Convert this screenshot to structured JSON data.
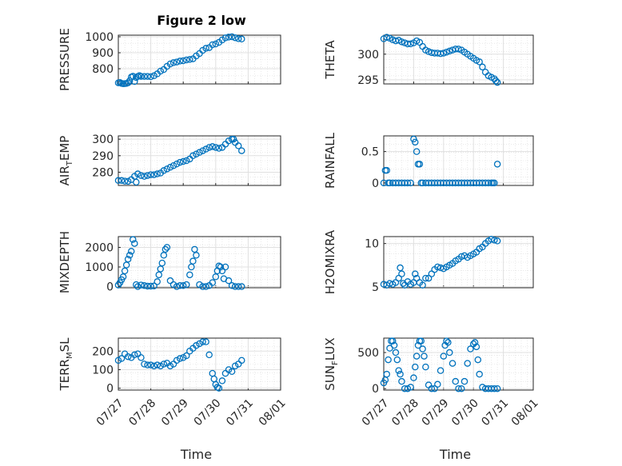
{
  "figure": {
    "title": "Figure 2 low"
  },
  "chart_data": [
    {
      "type": "scatter",
      "ylabel": "PRESSURE",
      "ylim": [
        705,
        1010
      ],
      "yticks": [
        800,
        900,
        1000
      ],
      "xlim": [
        0,
        5
      ],
      "grid": true,
      "marker_color": "#0072bd",
      "x": [
        0,
        0.05,
        0.1,
        0.15,
        0.2,
        0.25,
        0.3,
        0.35,
        0.4,
        0.45,
        0.5,
        0.55,
        0.6,
        0.65,
        0.7,
        0.8,
        0.9,
        1.0,
        1.1,
        1.2,
        1.3,
        1.4,
        1.5,
        1.6,
        1.7,
        1.8,
        1.9,
        2.0,
        2.1,
        2.2,
        2.3,
        2.4,
        2.5,
        2.6,
        2.7,
        2.8,
        2.9,
        3.0,
        3.1,
        3.2,
        3.3,
        3.4,
        3.5,
        3.6,
        3.7,
        3.8
      ],
      "y": [
        712,
        714,
        708,
        706,
        707,
        708,
        712,
        725,
        748,
        753,
        720,
        745,
        752,
        757,
        752,
        752,
        752,
        750,
        756,
        768,
        785,
        795,
        815,
        830,
        838,
        842,
        848,
        850,
        855,
        858,
        862,
        880,
        895,
        915,
        928,
        932,
        950,
        955,
        965,
        980,
        993,
        998,
        1000,
        994,
        988,
        986
      ]
    },
    {
      "type": "scatter",
      "ylabel": "THETA",
      "ylim": [
        294.2,
        303.7
      ],
      "yticks": [
        295,
        300
      ],
      "xlim": [
        0,
        5
      ],
      "grid": true,
      "x": [
        0,
        0.1,
        0.2,
        0.3,
        0.4,
        0.5,
        0.6,
        0.7,
        0.8,
        0.9,
        1.0,
        1.1,
        1.2,
        1.3,
        1.4,
        1.5,
        1.6,
        1.7,
        1.8,
        1.9,
        2.0,
        2.1,
        2.2,
        2.3,
        2.4,
        2.5,
        2.6,
        2.7,
        2.8,
        2.9,
        3.0,
        3.1,
        3.2,
        3.3,
        3.4,
        3.5,
        3.6,
        3.7,
        3.75,
        3.8
      ],
      "y": [
        303,
        303.3,
        303.1,
        302.8,
        302.6,
        302.7,
        302.4,
        302.2,
        302.0,
        302.0,
        302.2,
        302.6,
        302.3,
        301.5,
        300.8,
        300.5,
        300.3,
        300.2,
        300.2,
        300.1,
        300.2,
        300.4,
        300.6,
        300.8,
        301.0,
        301.0,
        300.8,
        300.4,
        300.0,
        299.6,
        299.2,
        298.8,
        298.5,
        297.5,
        296.5,
        295.8,
        295.5,
        295.2,
        294.8,
        294.5
      ]
    },
    {
      "type": "scatter",
      "ylabel": "AIR_TEMP",
      "ylim": [
        272,
        302
      ],
      "yticks": [
        280,
        290,
        300
      ],
      "xlim": [
        0,
        5
      ],
      "grid": true,
      "x": [
        0,
        0.1,
        0.2,
        0.3,
        0.4,
        0.5,
        0.55,
        0.6,
        0.7,
        0.8,
        0.9,
        1.0,
        1.1,
        1.2,
        1.3,
        1.4,
        1.5,
        1.6,
        1.7,
        1.8,
        1.9,
        2.0,
        2.1,
        2.2,
        2.3,
        2.4,
        2.5,
        2.6,
        2.7,
        2.8,
        2.9,
        3.0,
        3.1,
        3.2,
        3.3,
        3.4,
        3.5,
        3.55,
        3.6,
        3.7,
        3.8
      ],
      "y": [
        275,
        275,
        274.6,
        274.5,
        275.5,
        277.5,
        274,
        279,
        278,
        277.5,
        278,
        278.5,
        278.5,
        279,
        279.5,
        281,
        282,
        283,
        284,
        285,
        286,
        286.5,
        287,
        288,
        290,
        291,
        292,
        293,
        294,
        295,
        295.5,
        295,
        294.5,
        295,
        297,
        299,
        300,
        300,
        298,
        296,
        293
      ]
    },
    {
      "type": "scatter",
      "ylabel": "RAINFALL",
      "ylim": [
        -0.04,
        0.75
      ],
      "yticks": [
        0,
        0.5
      ],
      "xlim": [
        0,
        5
      ],
      "grid": true,
      "x": [
        0,
        0.05,
        0.1,
        0.15,
        0.2,
        0.3,
        0.4,
        0.5,
        0.6,
        0.7,
        0.8,
        0.9,
        1.0,
        1.05,
        1.1,
        1.15,
        1.2,
        1.25,
        1.3,
        1.4,
        1.5,
        1.6,
        1.7,
        1.8,
        1.9,
        2.0,
        2.1,
        2.2,
        2.3,
        2.4,
        2.5,
        2.6,
        2.7,
        2.8,
        2.9,
        3.0,
        3.1,
        3.2,
        3.3,
        3.4,
        3.5,
        3.6,
        3.65,
        3.7,
        3.8
      ],
      "y": [
        0,
        0.2,
        0.2,
        0,
        0,
        0,
        0,
        0,
        0,
        0,
        0,
        0,
        0.7,
        0.65,
        0.5,
        0.3,
        0.3,
        0,
        0,
        0,
        0,
        0,
        0,
        0,
        0,
        0,
        0,
        0,
        0,
        0,
        0,
        0,
        0,
        0,
        0,
        0,
        0,
        0,
        0,
        0,
        0,
        0,
        0,
        0,
        0.3
      ]
    },
    {
      "type": "scatter",
      "ylabel": "MIXDEPTH",
      "ylim": [
        -60,
        2550
      ],
      "yticks": [
        0,
        1000,
        2000
      ],
      "xlim": [
        0,
        5
      ],
      "grid": true,
      "x": [
        0,
        0.05,
        0.1,
        0.15,
        0.2,
        0.25,
        0.3,
        0.35,
        0.4,
        0.45,
        0.5,
        0.55,
        0.6,
        0.7,
        0.8,
        0.9,
        1.0,
        1.1,
        1.2,
        1.25,
        1.3,
        1.35,
        1.4,
        1.45,
        1.5,
        1.6,
        1.7,
        1.8,
        1.9,
        2.0,
        2.1,
        2.2,
        2.25,
        2.3,
        2.35,
        2.4,
        2.5,
        2.6,
        2.7,
        2.8,
        2.9,
        3.0,
        3.05,
        3.1,
        3.15,
        3.2,
        3.25,
        3.3,
        3.4,
        3.5,
        3.6,
        3.7,
        3.8
      ],
      "y": [
        80,
        200,
        350,
        500,
        800,
        1100,
        1400,
        1600,
        1800,
        2400,
        2200,
        100,
        0,
        80,
        50,
        20,
        20,
        30,
        250,
        600,
        900,
        1200,
        1600,
        1900,
        2000,
        300,
        100,
        0,
        50,
        50,
        100,
        600,
        1000,
        1300,
        1900,
        1600,
        100,
        0,
        0,
        50,
        200,
        500,
        800,
        1050,
        1000,
        800,
        400,
        1000,
        300,
        50,
        0,
        0,
        0
      ]
    },
    {
      "type": "scatter",
      "ylabel": "H2OMIXRA",
      "ylim": [
        4.9,
        10.8
      ],
      "yticks": [
        5,
        10
      ],
      "xlim": [
        0,
        5
      ],
      "grid": true,
      "x": [
        0,
        0.1,
        0.2,
        0.3,
        0.4,
        0.5,
        0.55,
        0.6,
        0.65,
        0.7,
        0.8,
        0.9,
        1.0,
        1.05,
        1.1,
        1.2,
        1.3,
        1.4,
        1.5,
        1.6,
        1.7,
        1.8,
        1.9,
        2.0,
        2.1,
        2.2,
        2.3,
        2.4,
        2.5,
        2.6,
        2.7,
        2.8,
        2.9,
        3.0,
        3.1,
        3.2,
        3.3,
        3.4,
        3.5,
        3.6,
        3.7,
        3.8
      ],
      "y": [
        5.3,
        5.2,
        5.4,
        5.3,
        5.5,
        6.0,
        7.2,
        6.5,
        5.4,
        5.2,
        5.6,
        5.3,
        5.5,
        6.5,
        6.0,
        5.5,
        5.2,
        6.0,
        6.0,
        6.5,
        7.0,
        7.3,
        7.2,
        7.1,
        7.3,
        7.5,
        7.7,
        8.0,
        8.2,
        8.5,
        8.6,
        8.4,
        8.6,
        8.8,
        9.0,
        9.4,
        9.6,
        10.0,
        10.3,
        10.5,
        10.4,
        10.3
      ]
    },
    {
      "type": "scatter",
      "ylabel": "TERR_MSL",
      "ylim": [
        -10,
        270
      ],
      "yticks": [
        0,
        100,
        200
      ],
      "xlim": [
        0,
        5
      ],
      "grid": true,
      "x": [
        0,
        0.1,
        0.2,
        0.3,
        0.4,
        0.5,
        0.6,
        0.7,
        0.8,
        0.9,
        1.0,
        1.1,
        1.2,
        1.3,
        1.4,
        1.5,
        1.6,
        1.7,
        1.8,
        1.9,
        2.0,
        2.1,
        2.2,
        2.3,
        2.4,
        2.5,
        2.6,
        2.7,
        2.8,
        2.9,
        2.95,
        3.0,
        3.05,
        3.1,
        3.2,
        3.3,
        3.4,
        3.5,
        3.6,
        3.7,
        3.8
      ],
      "y": [
        150,
        160,
        185,
        170,
        165,
        180,
        185,
        165,
        130,
        125,
        125,
        120,
        125,
        120,
        130,
        135,
        120,
        130,
        150,
        160,
        165,
        175,
        200,
        215,
        230,
        240,
        250,
        250,
        180,
        80,
        50,
        20,
        5,
        0,
        40,
        80,
        100,
        90,
        120,
        130,
        150
      ]
    },
    {
      "type": "scatter",
      "ylabel": "SUN_FLUX",
      "ylim": [
        -20,
        700
      ],
      "yticks": [
        0,
        500
      ],
      "xlim": [
        0,
        5
      ],
      "grid": true,
      "x": [
        0,
        0.05,
        0.1,
        0.15,
        0.2,
        0.25,
        0.3,
        0.35,
        0.4,
        0.45,
        0.5,
        0.55,
        0.6,
        0.7,
        0.8,
        0.9,
        1.0,
        1.05,
        1.1,
        1.15,
        1.2,
        1.25,
        1.3,
        1.35,
        1.4,
        1.5,
        1.6,
        1.7,
        1.8,
        1.9,
        2.0,
        2.05,
        2.1,
        2.15,
        2.2,
        2.3,
        2.4,
        2.5,
        2.6,
        2.7,
        2.8,
        2.9,
        3.0,
        3.05,
        3.1,
        3.15,
        3.2,
        3.3,
        3.4,
        3.5,
        3.6,
        3.7,
        3.8
      ],
      "y": [
        80,
        120,
        200,
        400,
        560,
        660,
        660,
        600,
        500,
        400,
        250,
        200,
        100,
        0,
        0,
        20,
        150,
        300,
        450,
        600,
        660,
        660,
        550,
        450,
        300,
        50,
        0,
        0,
        60,
        250,
        450,
        600,
        660,
        640,
        500,
        350,
        100,
        0,
        0,
        100,
        350,
        550,
        620,
        640,
        580,
        400,
        200,
        20,
        0,
        0,
        0,
        0,
        0
      ]
    }
  ],
  "xaxis": {
    "tick_labels": [
      "07/27",
      "07/28",
      "07/29",
      "07/30",
      "07/31",
      "08/01"
    ],
    "label": "Time"
  }
}
